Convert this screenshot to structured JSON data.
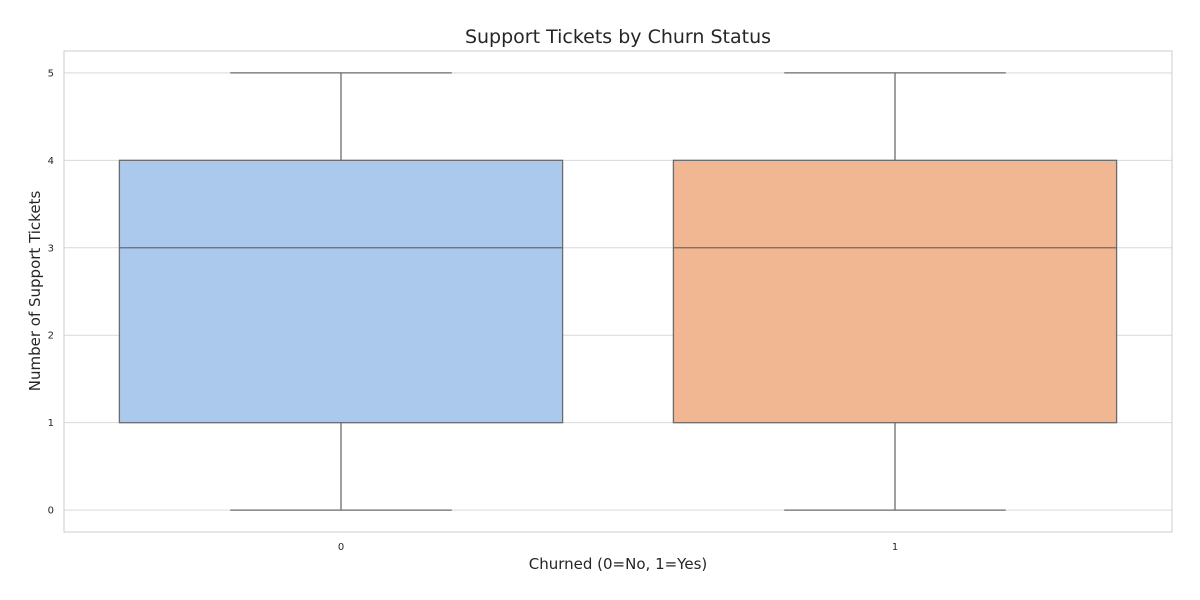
{
  "chart_data": {
    "type": "box",
    "title": "Support Tickets by Churn Status",
    "xlabel": "Churned (0=No, 1=Yes)",
    "ylabel": "Number of Support Tickets",
    "categories": [
      "0",
      "1"
    ],
    "ylim": [
      -0.25,
      5.25
    ],
    "yticks": [
      0,
      1,
      2,
      3,
      4,
      5
    ],
    "grid": true,
    "boxes": [
      {
        "category": "0",
        "min": 0,
        "q1": 1,
        "median": 3,
        "q3": 4,
        "max": 5,
        "color": "#abc9ed"
      },
      {
        "category": "1",
        "min": 0,
        "q1": 1,
        "median": 3,
        "q3": 4,
        "max": 5,
        "color": "#f1b792"
      }
    ],
    "colors": {
      "line": "#6b6b6b",
      "grid": "#d9d9d9",
      "frame": "#cccccc"
    }
  }
}
